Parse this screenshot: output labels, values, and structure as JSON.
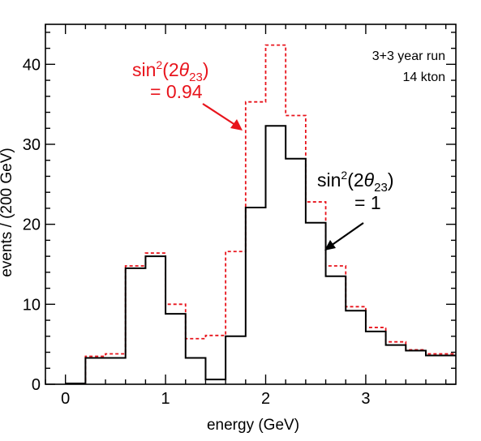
{
  "chart_data": {
    "type": "histogram",
    "xlabel": "energy (GeV)",
    "ylabel": "events / (200 GeV)",
    "xlim": [
      -0.2,
      3.9
    ],
    "ylim": [
      0,
      45
    ],
    "xticks": [
      0,
      1,
      2,
      3
    ],
    "yticks": [
      0,
      10,
      20,
      30,
      40
    ],
    "bin_edges": [
      0.0,
      0.2,
      0.4,
      0.6,
      0.8,
      1.0,
      1.2,
      1.4,
      1.6,
      1.8,
      2.0,
      2.2,
      2.4,
      2.6,
      2.8,
      3.0,
      3.2,
      3.4,
      3.6,
      3.8,
      3.9
    ],
    "series": [
      {
        "name": "sin²(2θ₂₃) = 1",
        "style": "solid",
        "color": "#000000",
        "values": [
          0.1,
          3.3,
          3.3,
          14.5,
          16.0,
          8.8,
          3.3,
          0.6,
          6.0,
          22.1,
          32.3,
          28.2,
          20.2,
          13.5,
          9.2,
          6.6,
          4.9,
          4.2,
          3.6,
          3.6
        ]
      },
      {
        "name": "sin²(2θ₂₃) = 0.94",
        "style": "dashed",
        "color": "#e8141c",
        "values": [
          0.1,
          3.5,
          3.8,
          14.8,
          16.4,
          10.0,
          5.7,
          6.1,
          16.6,
          35.3,
          42.4,
          33.6,
          22.8,
          14.8,
          9.7,
          7.1,
          5.3,
          4.3,
          3.8,
          3.8
        ]
      }
    ],
    "legend_note": {
      "line1": "3+3 year run",
      "line2": "14 kton"
    },
    "annotations": {
      "red": {
        "sin": "sin",
        "sup": "2",
        "open": "(2",
        "theta": "θ",
        "sub": "23",
        "close": ")",
        "value": "= 0.94"
      },
      "black": {
        "sin": "sin",
        "sup": "2",
        "open": "(2",
        "theta": "θ",
        "sub": "23",
        "close": ")",
        "value": "= 1"
      }
    },
    "grid": false
  }
}
